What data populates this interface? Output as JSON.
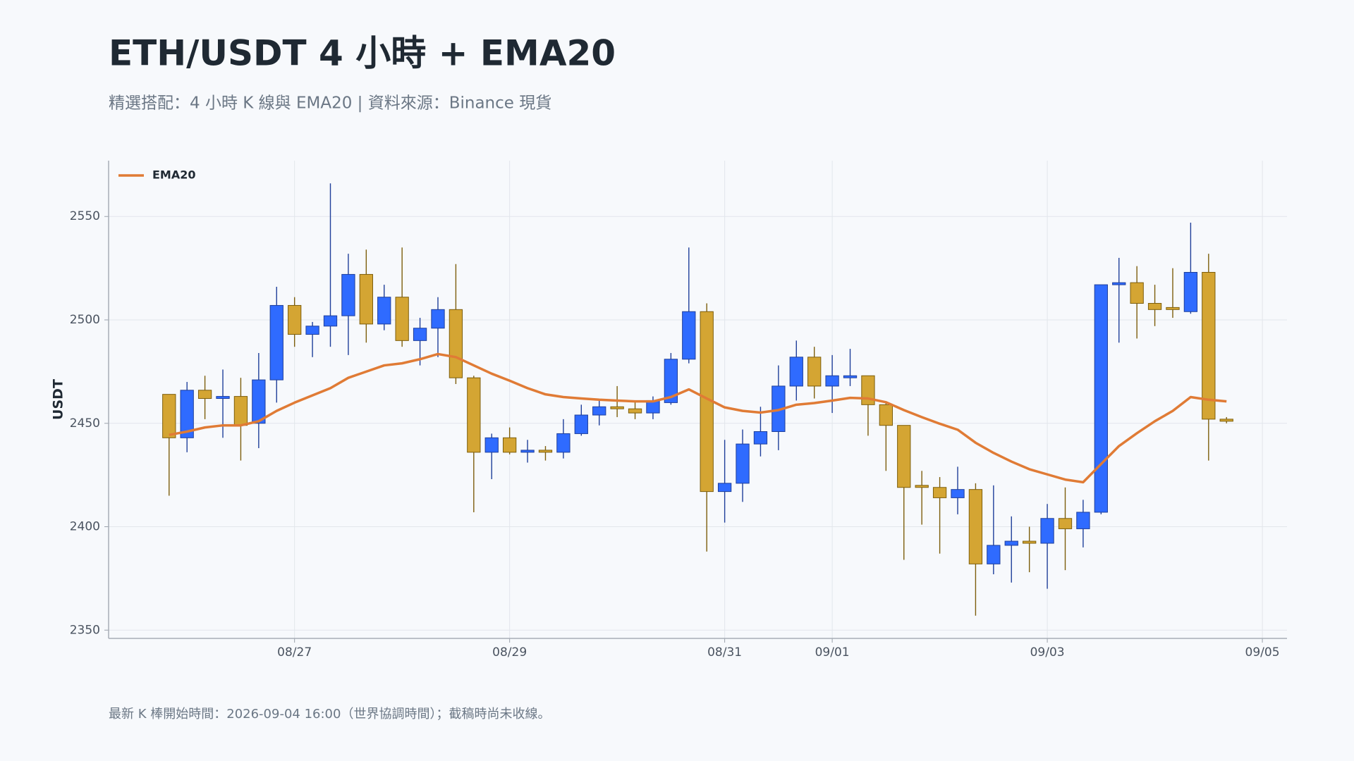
{
  "chart_data": {
    "type": "candlestick",
    "title": "ETH/USDT 4 小時 + EMA20",
    "subtitle": "精選搭配：4 小時 K 線與 EMA20 | 資料來源：Binance 現貨",
    "note": "最新 K 棒開始時間：2026-09-04 16:00（世界協調時間）；截稿時尚未收線。",
    "y_label": "USDT",
    "grid": true,
    "legend": "upper left",
    "up_color": "#2f6bff",
    "down_color": "#d4a533",
    "xlim": [
      "2026-08-25 06:30",
      "2026-09-05 05:30"
    ],
    "xticks": [
      {
        "value": "2026-08-27 00:00",
        "label": "08/27"
      },
      {
        "value": "2026-08-29 00:00",
        "label": "08/29"
      },
      {
        "value": "2026-08-31 00:00",
        "label": "08/31"
      },
      {
        "value": "2026-09-01 00:00",
        "label": "09/01"
      },
      {
        "value": "2026-09-03 00:00",
        "label": "09/03"
      },
      {
        "value": "2026-09-05 00:00",
        "label": "09/05"
      }
    ],
    "ylim": [
      2346,
      2577
    ],
    "yticks": [
      2350,
      2400,
      2450,
      2500,
      2550
    ],
    "x": [
      "2026-08-25 20:00",
      "2026-08-26 00:00",
      "2026-08-26 04:00",
      "2026-08-26 08:00",
      "2026-08-26 12:00",
      "2026-08-26 16:00",
      "2026-08-26 20:00",
      "2026-08-27 00:00",
      "2026-08-27 04:00",
      "2026-08-27 08:00",
      "2026-08-27 12:00",
      "2026-08-27 16:00",
      "2026-08-27 20:00",
      "2026-08-28 00:00",
      "2026-08-28 04:00",
      "2026-08-28 08:00",
      "2026-08-28 12:00",
      "2026-08-28 16:00",
      "2026-08-28 20:00",
      "2026-08-29 00:00",
      "2026-08-29 04:00",
      "2026-08-29 08:00",
      "2026-08-29 12:00",
      "2026-08-29 16:00",
      "2026-08-29 20:00",
      "2026-08-30 00:00",
      "2026-08-30 04:00",
      "2026-08-30 08:00",
      "2026-08-30 12:00",
      "2026-08-30 16:00",
      "2026-08-30 20:00",
      "2026-08-31 00:00",
      "2026-08-31 04:00",
      "2026-08-31 08:00",
      "2026-08-31 12:00",
      "2026-08-31 16:00",
      "2026-08-31 20:00",
      "2026-09-01 00:00",
      "2026-09-01 04:00",
      "2026-09-01 08:00",
      "2026-09-01 12:00",
      "2026-09-01 16:00",
      "2026-09-01 20:00",
      "2026-09-02 00:00",
      "2026-09-02 04:00",
      "2026-09-02 08:00",
      "2026-09-02 12:00",
      "2026-09-02 16:00",
      "2026-09-02 20:00",
      "2026-09-03 00:00",
      "2026-09-03 04:00",
      "2026-09-03 08:00",
      "2026-09-03 12:00",
      "2026-09-03 16:00",
      "2026-09-03 20:00",
      "2026-09-04 00:00",
      "2026-09-04 04:00",
      "2026-09-04 08:00",
      "2026-09-04 12:00",
      "2026-09-04 16:00"
    ],
    "series": [
      {
        "type": "candlestick",
        "open": [
          2464,
          2443,
          2466,
          2462,
          2463,
          2450,
          2471,
          2507,
          2493,
          2497,
          2502,
          2522,
          2498,
          2511,
          2490,
          2496,
          2505,
          2472,
          2436,
          2443,
          2436,
          2437,
          2436,
          2445,
          2454,
          2458,
          2457,
          2455,
          2460,
          2481,
          2504,
          2417,
          2421,
          2440,
          2446,
          2468,
          2482,
          2468,
          2472,
          2473,
          2459,
          2449,
          2420,
          2419,
          2414,
          2418,
          2382,
          2391,
          2393,
          2392,
          2404,
          2399,
          2407,
          2517,
          2518,
          2508,
          2506,
          2504,
          2523,
          2452
        ],
        "high": [
          2464,
          2470,
          2473,
          2476,
          2472,
          2484,
          2516,
          2511,
          2499,
          2566,
          2532,
          2534,
          2517,
          2535,
          2501,
          2511,
          2527,
          2473,
          2445,
          2448,
          2442,
          2439,
          2452,
          2459,
          2461,
          2468,
          2461,
          2463,
          2484,
          2535,
          2508,
          2442,
          2447,
          2458,
          2478,
          2490,
          2487,
          2483,
          2486,
          2473,
          2460,
          2449,
          2427,
          2424,
          2429,
          2421,
          2420,
          2405,
          2400,
          2411,
          2419,
          2413,
          2517,
          2530,
          2526,
          2517,
          2525,
          2547,
          2532,
          2453
        ],
        "low": [
          2415,
          2436,
          2452,
          2443,
          2432,
          2438,
          2460,
          2487,
          2482,
          2487,
          2483,
          2489,
          2495,
          2487,
          2478,
          2482,
          2469,
          2407,
          2423,
          2435,
          2431,
          2432,
          2433,
          2444,
          2449,
          2453,
          2452,
          2452,
          2459,
          2479,
          2388,
          2402,
          2412,
          2434,
          2437,
          2461,
          2462,
          2455,
          2468,
          2444,
          2427,
          2384,
          2401,
          2387,
          2406,
          2357,
          2377,
          2373,
          2378,
          2370,
          2379,
          2390,
          2406,
          2489,
          2491,
          2497,
          2501,
          2503,
          2432,
          2450
        ],
        "close": [
          2443,
          2466,
          2462,
          2463,
          2449,
          2471,
          2507,
          2493,
          2497,
          2502,
          2522,
          2498,
          2511,
          2490,
          2496,
          2505,
          2472,
          2436,
          2443,
          2436,
          2437,
          2436,
          2445,
          2454,
          2458,
          2457,
          2455,
          2461,
          2481,
          2504,
          2417,
          2421,
          2440,
          2446,
          2468,
          2482,
          2468,
          2473,
          2473,
          2459,
          2449,
          2419,
          2419,
          2414,
          2418,
          2382,
          2391,
          2393,
          2392,
          2404,
          2399,
          2407,
          2517,
          2518,
          2508,
          2505,
          2505,
          2523,
          2452,
          2451
        ]
      },
      {
        "type": "line",
        "name": "EMA20",
        "color": "#e07b35",
        "values": [
          2444.4,
          2446,
          2448,
          2449,
          2449,
          2451,
          2456,
          2460,
          2463.5,
          2467,
          2472,
          2475,
          2478,
          2479,
          2481,
          2483.5,
          2482,
          2478,
          2474,
          2470.6,
          2467,
          2464,
          2462.7,
          2462,
          2461.4,
          2461,
          2460.6,
          2460.6,
          2462.7,
          2466.4,
          2462,
          2457.7,
          2456,
          2455.2,
          2456.4,
          2459,
          2459.8,
          2461,
          2462.3,
          2462,
          2460.2,
          2456.4,
          2453,
          2449.8,
          2446.9,
          2440.6,
          2435.7,
          2431.5,
          2427.8,
          2425.3,
          2422.8,
          2421.5,
          2430.3,
          2439,
          2445.2,
          2451,
          2456,
          2462.7,
          2461.4,
          2460.6
        ]
      }
    ]
  }
}
